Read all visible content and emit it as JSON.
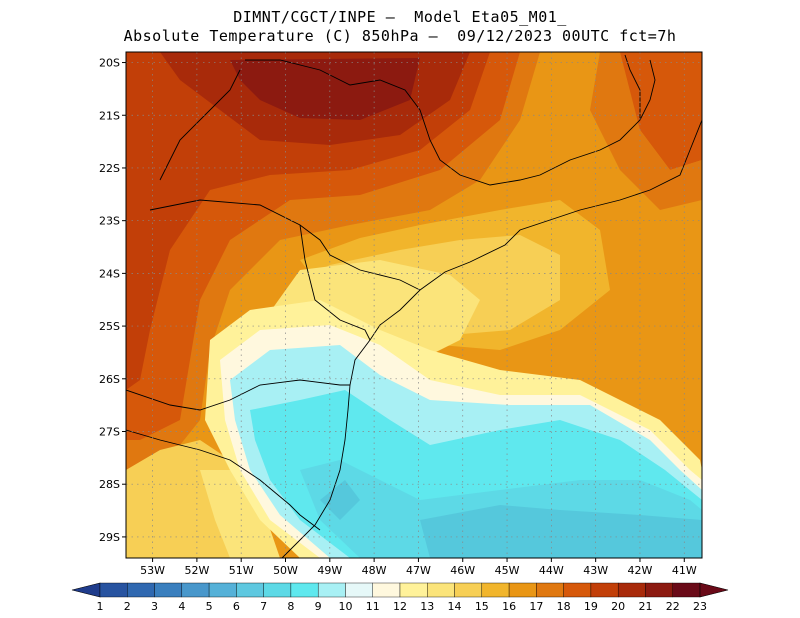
{
  "title_line1": "DIMNT/CGCT/INPE —  Model Eta05_M01_",
  "title_line2": "Absolute Temperature (C) 850hPa —  09/12/2023 00UTC fct=7h",
  "lat_labels": [
    "20S",
    "21S",
    "22S",
    "23S",
    "24S",
    "25S",
    "26S",
    "27S",
    "28S",
    "29S"
  ],
  "lon_labels": [
    "53W",
    "52W",
    "51W",
    "50W",
    "49W",
    "48W",
    "47W",
    "46W",
    "45W",
    "44W",
    "43W",
    "42W",
    "41W"
  ],
  "colorbar": {
    "labels": [
      "1",
      "2",
      "3",
      "4",
      "5",
      "6",
      "7",
      "8",
      "9",
      "10",
      "11",
      "12",
      "13",
      "14",
      "15",
      "16",
      "17",
      "18",
      "19",
      "20",
      "21",
      "22",
      "23"
    ],
    "colors": [
      "#1f3c8c",
      "#2753a0",
      "#2f68b0",
      "#3a7fbe",
      "#4897cb",
      "#55b1d8",
      "#5ec8e0",
      "#5dd9e6",
      "#5fe8ee",
      "#a8f0f4",
      "#e6f8f8",
      "#fff8de",
      "#fff29a",
      "#fbe47a",
      "#f7cf55",
      "#f1b52c",
      "#e99615",
      "#e07810",
      "#d6580a",
      "#c23f08",
      "#a82a0a",
      "#8c1a10",
      "#6a0a18"
    ],
    "underflow_color": "#1f3c8c",
    "overflow_color": "#6a0a18"
  },
  "map": {
    "lon_range": [
      -53.6,
      -40.6
    ],
    "lat_range": [
      -29.4,
      -19.8
    ],
    "grid": "dotted"
  }
}
